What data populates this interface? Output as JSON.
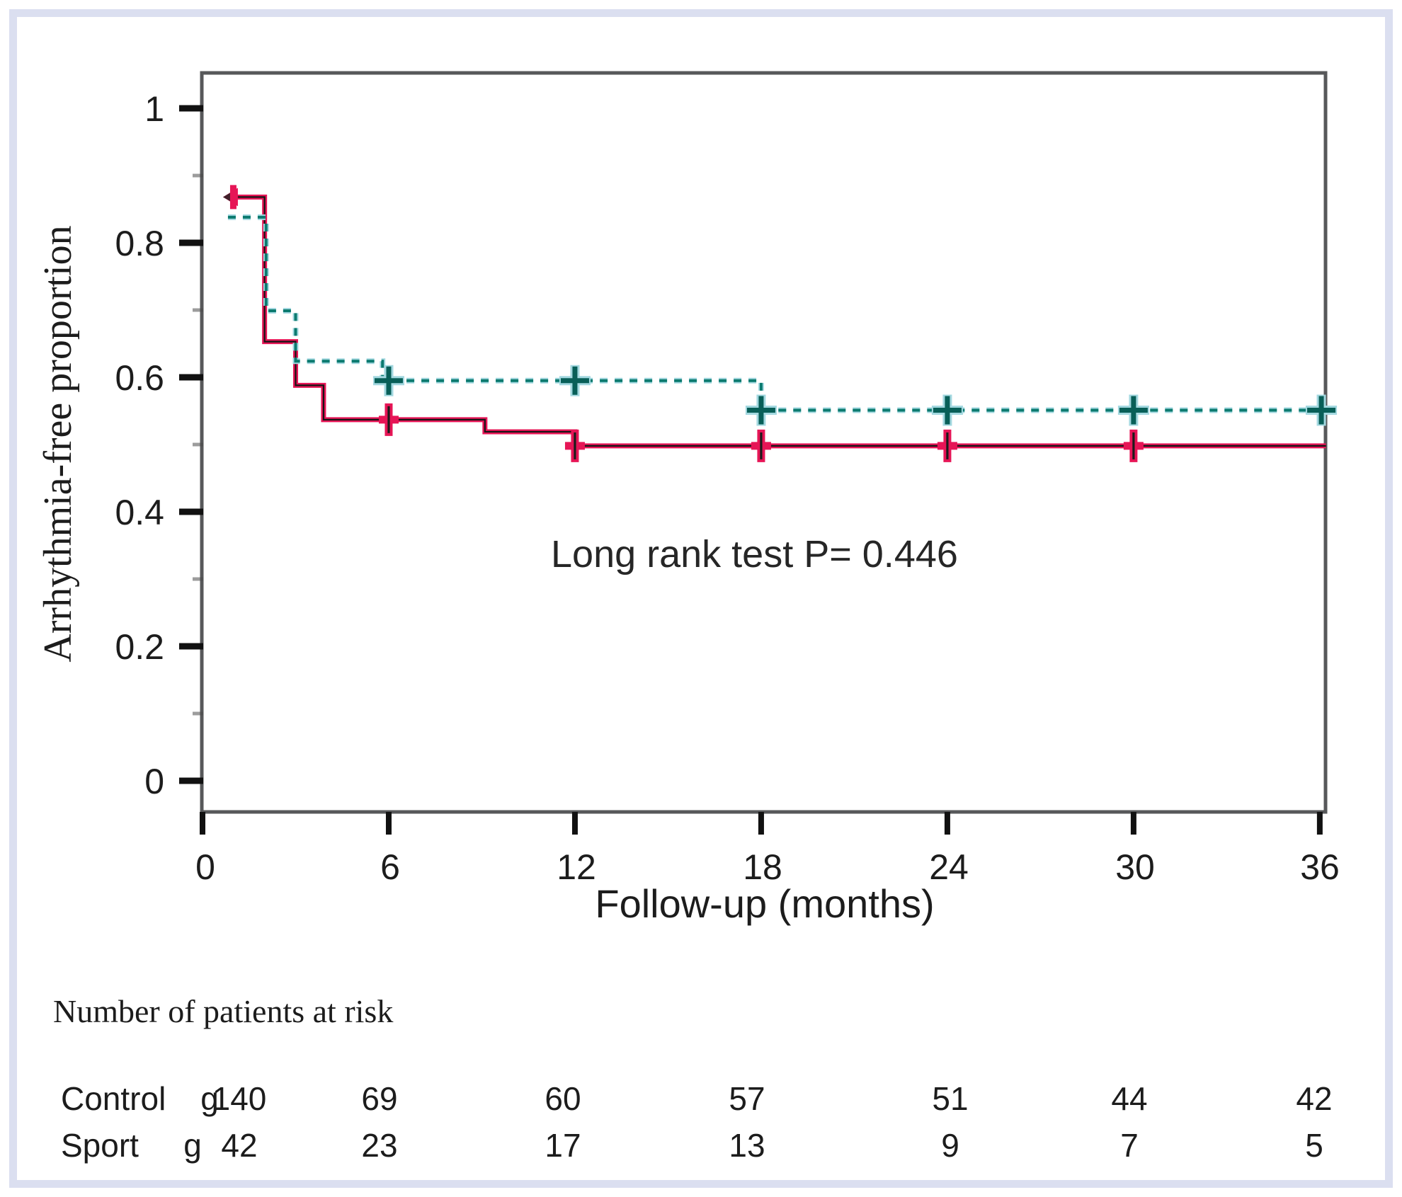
{
  "chart_data": {
    "type": "line",
    "subtype": "kaplan-meier-step",
    "title": "",
    "xlabel": "Follow-up (months)",
    "ylabel": "Arrhythmia-free proportion",
    "xlim": [
      0,
      36
    ],
    "ylim": [
      0,
      1
    ],
    "grid": false,
    "legend": "none visible",
    "x_ticks": [
      0,
      6,
      12,
      18,
      24,
      30,
      36
    ],
    "y_ticks": [
      1,
      0.8,
      0.6,
      0.4,
      0.2,
      0
    ],
    "annotation": "Long rank test P= 0.446",
    "series": [
      {
        "name": "Control group",
        "line_style": "solid",
        "color": "#e61556",
        "core_color": "#151515",
        "start_marker": "left-arrow",
        "steps": [
          [
            0.82,
            0.868
          ],
          [
            2.0,
            0.868
          ],
          [
            2.0,
            0.653
          ],
          [
            3.0,
            0.653
          ],
          [
            3.0,
            0.588
          ],
          [
            3.9,
            0.588
          ],
          [
            3.9,
            0.537
          ],
          [
            9.1,
            0.537
          ],
          [
            9.1,
            0.519
          ],
          [
            12.0,
            0.519
          ],
          [
            12.0,
            0.498
          ],
          [
            36.2,
            0.498
          ]
        ],
        "censor_marks": [
          [
            6,
            0.537
          ],
          [
            12,
            0.498
          ],
          [
            18,
            0.498
          ],
          [
            24,
            0.498
          ],
          [
            30,
            0.498
          ]
        ]
      },
      {
        "name": "Sport group",
        "line_style": "dashed",
        "color": "#0b7a6f",
        "halo_color": "#a3d8e0",
        "steps": [
          [
            0.82,
            0.838
          ],
          [
            2.05,
            0.838
          ],
          [
            2.05,
            0.699
          ],
          [
            3.0,
            0.699
          ],
          [
            3.0,
            0.624
          ],
          [
            5.8,
            0.624
          ],
          [
            5.8,
            0.595
          ],
          [
            18.0,
            0.595
          ],
          [
            18.0,
            0.551
          ],
          [
            36.2,
            0.551
          ]
        ],
        "censor_marks": [
          [
            6,
            0.595
          ],
          [
            12,
            0.595
          ],
          [
            18,
            0.551
          ],
          [
            24,
            0.551
          ],
          [
            30,
            0.551
          ],
          [
            36.05,
            0.551
          ]
        ]
      }
    ]
  },
  "at_risk_table": {
    "title": "Number of patients at risk",
    "rows": [
      {
        "label": "Control",
        "suffix": "g",
        "values": [
          "140",
          "69",
          "60",
          "57",
          "51",
          "44",
          "42"
        ]
      },
      {
        "label": "Sport",
        "suffix": "g",
        "values": [
          "42",
          "23",
          "17",
          "13",
          "9",
          "7",
          "5"
        ]
      }
    ]
  },
  "frame": {
    "border_color": "#dbdff0",
    "axis_color": "#57585a"
  }
}
